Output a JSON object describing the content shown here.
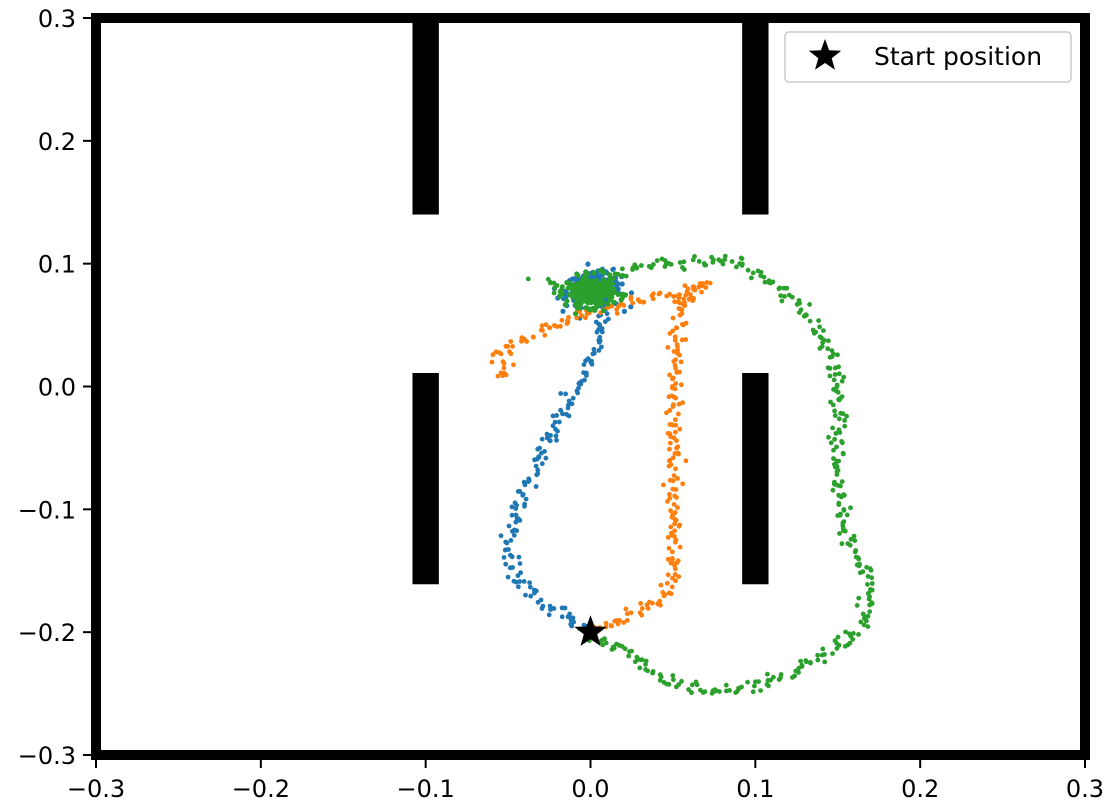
{
  "chart_data": {
    "type": "scatter",
    "title": "",
    "xlabel": "",
    "ylabel": "",
    "xlim": [
      -0.3,
      0.3
    ],
    "ylim": [
      -0.3,
      0.3
    ],
    "x_ticks": [
      -0.3,
      -0.2,
      -0.1,
      0.0,
      0.1,
      0.2,
      0.3
    ],
    "y_ticks": [
      -0.3,
      -0.2,
      -0.1,
      0.0,
      0.1,
      0.2,
      0.3
    ],
    "x_tick_labels": [
      "−0.3",
      "−0.2",
      "−0.1",
      "0.0",
      "0.1",
      "0.2",
      "0.3"
    ],
    "y_tick_labels": [
      "−0.3",
      "−0.2",
      "−0.1",
      "0.0",
      "0.1",
      "0.2",
      "0.3"
    ],
    "grid": false,
    "legend_position": "top-right",
    "legend": [
      {
        "label": "Start position",
        "marker": "star",
        "color": "#000000"
      }
    ],
    "start_position": [
      0.0,
      -0.2
    ],
    "walls": [
      {
        "x0": -0.108,
        "x1": -0.092,
        "y0": 0.14,
        "y1": 0.3
      },
      {
        "x0": -0.108,
        "x1": -0.092,
        "y0": -0.161,
        "y1": 0.011
      },
      {
        "x0": 0.092,
        "x1": 0.108,
        "y0": 0.14,
        "y1": 0.3
      },
      {
        "x0": 0.092,
        "x1": 0.108,
        "y0": -0.161,
        "y1": 0.011
      }
    ],
    "series": [
      {
        "color": "#1f77b4",
        "path": [
          [
            0.0,
            -0.2
          ],
          [
            -0.01,
            -0.19
          ],
          [
            -0.03,
            -0.175
          ],
          [
            -0.045,
            -0.155
          ],
          [
            -0.05,
            -0.13
          ],
          [
            -0.045,
            -0.1
          ],
          [
            -0.035,
            -0.07
          ],
          [
            -0.025,
            -0.045
          ],
          [
            -0.015,
            -0.015
          ],
          [
            -0.005,
            0.01
          ],
          [
            0.005,
            0.035
          ],
          [
            0.01,
            0.06
          ],
          [
            0.0,
            0.075
          ],
          [
            0.005,
            0.09
          ],
          [
            0.01,
            0.1
          ]
        ],
        "cluster": {
          "center": [
            0.002,
            0.078
          ],
          "spread": [
            0.015,
            0.012
          ]
        }
      },
      {
        "color": "#ff7f0e",
        "path": [
          [
            0.0,
            -0.2
          ],
          [
            0.02,
            -0.19
          ],
          [
            0.04,
            -0.175
          ],
          [
            0.052,
            -0.155
          ],
          [
            0.05,
            -0.1
          ],
          [
            0.05,
            -0.05
          ],
          [
            0.05,
            0.0
          ],
          [
            0.052,
            0.03
          ],
          [
            0.055,
            0.06
          ],
          [
            0.06,
            0.08
          ],
          [
            0.07,
            0.085
          ],
          [
            0.06,
            0.07
          ],
          [
            0.045,
            0.075
          ],
          [
            0.025,
            0.07
          ],
          [
            0.0,
            0.06
          ],
          [
            -0.03,
            0.045
          ],
          [
            -0.055,
            0.03
          ],
          [
            -0.05,
            0.005
          ]
        ],
        "cluster": null
      },
      {
        "color": "#2ca02c",
        "path": [
          [
            0.0,
            -0.2
          ],
          [
            0.02,
            -0.215
          ],
          [
            0.045,
            -0.24
          ],
          [
            0.075,
            -0.25
          ],
          [
            0.11,
            -0.24
          ],
          [
            0.14,
            -0.22
          ],
          [
            0.165,
            -0.195
          ],
          [
            0.17,
            -0.16
          ],
          [
            0.155,
            -0.12
          ],
          [
            0.15,
            -0.08
          ],
          [
            0.15,
            -0.04
          ],
          [
            0.15,
            0.0
          ],
          [
            0.15,
            0.015
          ],
          [
            0.14,
            0.04
          ],
          [
            0.12,
            0.075
          ],
          [
            0.095,
            0.1
          ],
          [
            0.06,
            0.102
          ],
          [
            0.03,
            0.097
          ],
          [
            0.01,
            0.085
          ],
          [
            -0.01,
            0.078
          ],
          [
            -0.03,
            0.088
          ]
        ],
        "cluster": {
          "center": [
            0.0,
            0.077
          ],
          "spread": [
            0.013,
            0.011
          ]
        }
      }
    ]
  }
}
